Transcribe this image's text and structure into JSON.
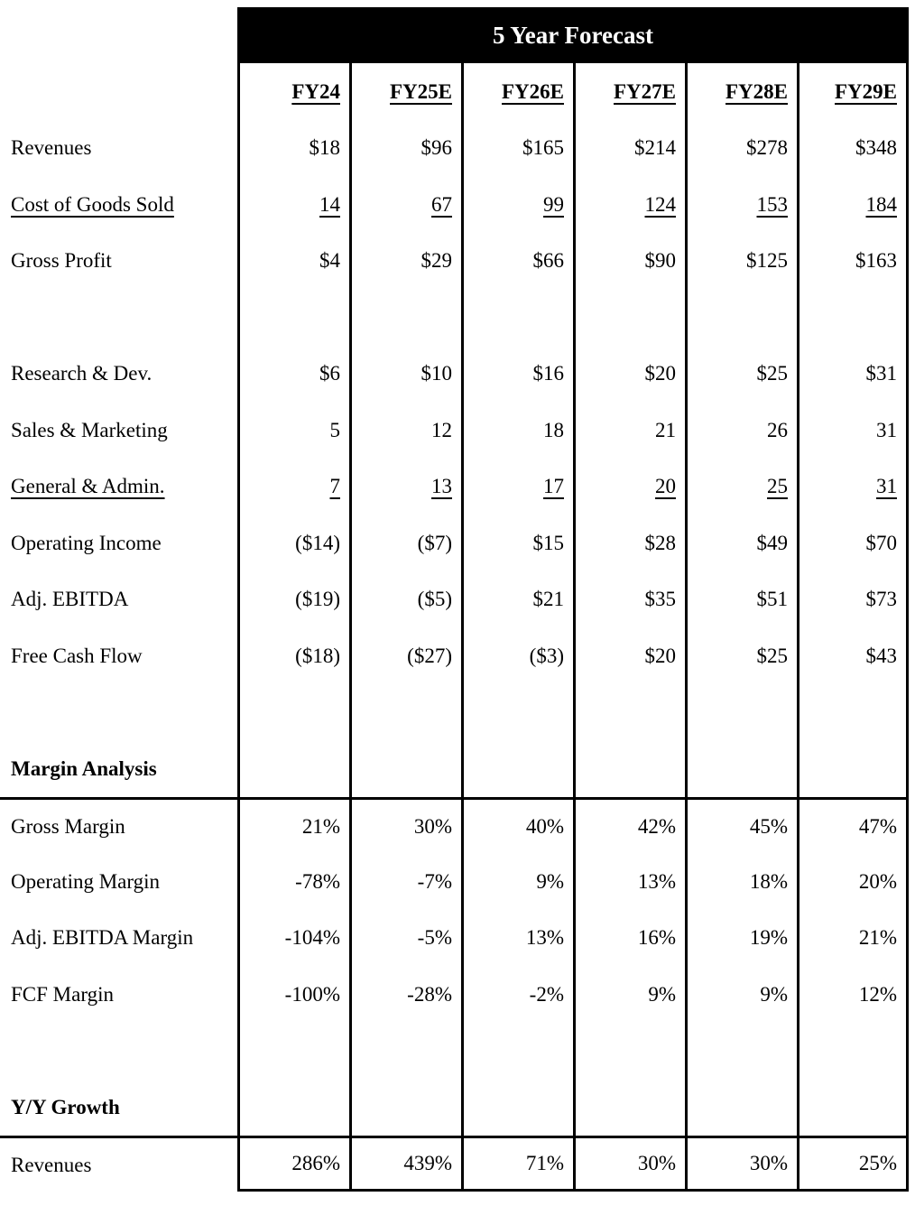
{
  "header": {
    "title": "5 Year Forecast"
  },
  "columns": [
    "FY24",
    "FY25E",
    "FY26E",
    "FY27E",
    "FY28E",
    "FY29E"
  ],
  "rows": {
    "revenues": {
      "label": "Revenues",
      "values": [
        "$18",
        "$96",
        "$165",
        "$214",
        "$278",
        "$348"
      ]
    },
    "cogs": {
      "label": "Cost of Goods Sold",
      "values": [
        "14",
        "67",
        "99",
        "124",
        "153",
        "184"
      ]
    },
    "gross_profit": {
      "label": "Gross Profit",
      "values": [
        "$4",
        "$29",
        "$66",
        "$90",
        "$125",
        "$163"
      ]
    },
    "research_dev": {
      "label": "Research & Dev.",
      "values": [
        "$6",
        "$10",
        "$16",
        "$20",
        "$25",
        "$31"
      ]
    },
    "sales_marketing": {
      "label": "Sales & Marketing",
      "values": [
        "5",
        "12",
        "18",
        "21",
        "26",
        "31"
      ]
    },
    "general_admin": {
      "label": "General & Admin.",
      "values": [
        "7",
        "13",
        "17",
        "20",
        "25",
        "31"
      ]
    },
    "operating_income": {
      "label": "Operating Income",
      "values": [
        "($14)",
        "($7)",
        "$15",
        "$28",
        "$49",
        "$70"
      ]
    },
    "adj_ebitda": {
      "label": "Adj. EBITDA",
      "values": [
        "($19)",
        "($5)",
        "$21",
        "$35",
        "$51",
        "$73"
      ]
    },
    "free_cash_flow": {
      "label": "Free Cash Flow",
      "values": [
        "($18)",
        "($27)",
        "($3)",
        "$20",
        "$25",
        "$43"
      ]
    },
    "gross_margin": {
      "label": "Gross Margin",
      "values": [
        "21%",
        "30%",
        "40%",
        "42%",
        "45%",
        "47%"
      ]
    },
    "operating_margin": {
      "label": "Operating Margin",
      "values": [
        "-78%",
        "-7%",
        "9%",
        "13%",
        "18%",
        "20%"
      ]
    },
    "adj_ebitda_margin": {
      "label": "Adj. EBITDA Margin",
      "values": [
        "-104%",
        "-5%",
        "13%",
        "16%",
        "19%",
        "21%"
      ]
    },
    "fcf_margin": {
      "label": "FCF Margin",
      "values": [
        "-100%",
        "-28%",
        "-2%",
        "9%",
        "9%",
        "12%"
      ]
    },
    "revenues_growth": {
      "label": "Revenues",
      "values": [
        "286%",
        "439%",
        "71%",
        "30%",
        "30%",
        "25%"
      ]
    }
  },
  "sections": {
    "margin_analysis": "Margin Analysis",
    "yy_growth": "Y/Y Growth"
  },
  "colors": {
    "header_bg": "#000000",
    "text": "#000000",
    "background": "#ffffff"
  }
}
